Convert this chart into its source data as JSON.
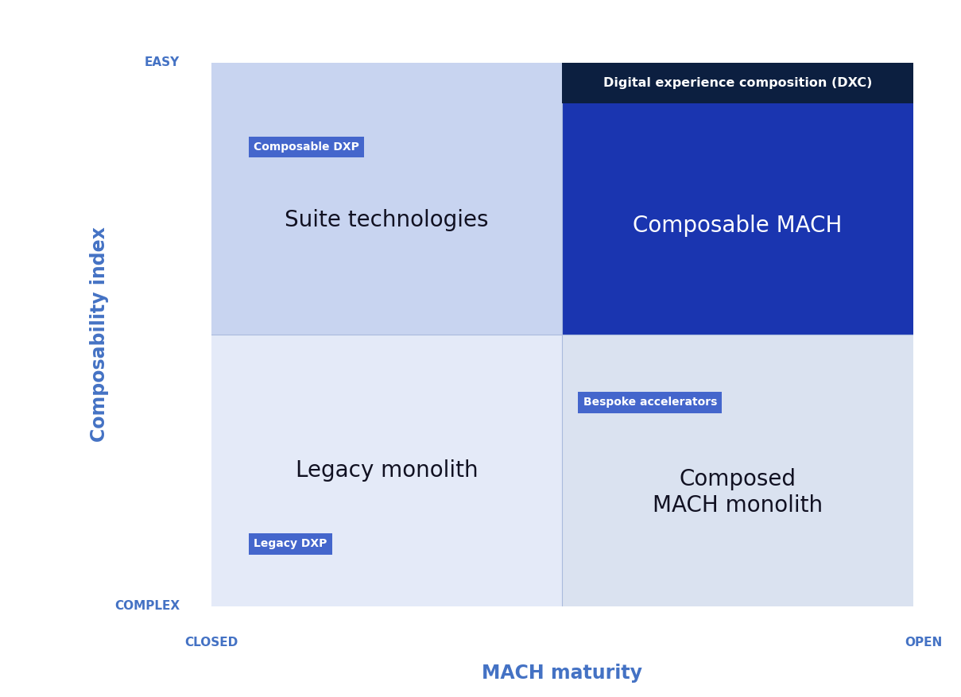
{
  "background_color": "#ffffff",
  "axis_color": "#6699EE",
  "quadrant_colors": {
    "top_left": "#C8D4F0",
    "top_right": "#1A35B0",
    "bottom_left": "#E4EAF8",
    "bottom_right": "#DAE2F0"
  },
  "dxc_banner_color": "#0C1F40",
  "dxc_banner_text": "Digital experience composition (DXC)",
  "dxc_banner_text_color": "#ffffff",
  "quadrant_labels": {
    "top_left": "Suite technologies",
    "top_right": "Composable MACH",
    "bottom_left": "Legacy monolith",
    "bottom_right": "Composed\nMACH monolith"
  },
  "quadrant_label_colors": {
    "top_left": "#111122",
    "top_right": "#ffffff",
    "bottom_left": "#111122",
    "bottom_right": "#111122"
  },
  "tech_labels": {
    "composable_dxp": "Composable DXP",
    "legacy_dxp": "Legacy DXP",
    "bespoke_accelerators": "Bespoke accelerators"
  },
  "tech_label_bg": "#4466CC",
  "tech_label_text_color": "#ffffff",
  "x_axis_label": "MACH maturity",
  "y_axis_label": "Composability index",
  "x_left_label": "CLOSED",
  "x_right_label": "OPEN",
  "y_top_label": "EASY",
  "y_bottom_label": "COMPLEX",
  "axis_label_color": "#4472C4",
  "tick_label_color": "#4472C4",
  "quadrant_label_fontsize": 20,
  "tech_label_fontsize": 10,
  "axis_label_fontsize": 17,
  "tick_label_fontsize": 11
}
